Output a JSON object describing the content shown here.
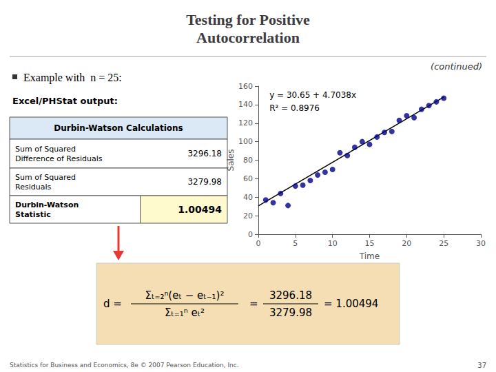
{
  "chart_data": {
    "type": "scatter",
    "title": "Testing for Positive\nAutocorrelation",
    "subtitle": "(continued)",
    "xlabel": "Time",
    "ylabel": "Sales",
    "xlim": [
      0,
      30
    ],
    "xticks": [
      0,
      5,
      10,
      15,
      20,
      25,
      30
    ],
    "ylim": [
      0,
      160
    ],
    "yticks": [
      0,
      20,
      40,
      60,
      80,
      100,
      120,
      140,
      160
    ],
    "grid": false,
    "series": [
      {
        "type": "scatter",
        "color": "#00008B",
        "x": [
          1,
          2,
          3,
          4,
          5,
          6,
          7,
          8,
          9,
          10,
          11,
          12,
          13,
          14,
          15,
          16,
          17,
          18,
          19,
          20,
          21,
          22,
          23,
          24,
          25
        ],
        "values": [
          37,
          34,
          44,
          31,
          52,
          53,
          58,
          64,
          67,
          70,
          88,
          85,
          94,
          100,
          97,
          105,
          110,
          111,
          123,
          128,
          126,
          135,
          139,
          143,
          147
        ]
      },
      {
        "type": "line",
        "color": "#000000",
        "x": [
          0,
          25
        ],
        "values": [
          30.65,
          148.245
        ]
      }
    ],
    "annotations": [
      "y = 30.65 + 4.7038x",
      "R² = 0.8976"
    ],
    "bullet_text": "Example with  n = 25:",
    "excel_label": "Excel/PHStat output:",
    "table": {
      "header": "Durbin-Watson Calculations",
      "rows": [
        [
          "Sum of Squared\nDifference of Residuals",
          "3296.18"
        ],
        [
          "Sum of Squared\nResiduals",
          "3279.98"
        ],
        [
          "Durbin-Watson\nStatistic",
          "1.00494"
        ]
      ]
    },
    "formula": [
      {
        "left": "d =",
        "numerator": "Σₜ₌₂ⁿ(eₜ − eₜ₋₁)²",
        "denominator": "Σₜ₌₁ⁿ eₜ²"
      },
      {
        "left": "=",
        "numerator": "3296.18",
        "denominator": "3279.98",
        "right": "= 1.00494"
      }
    ],
    "footer": "Statistics for Business and Economics, 8e © 2007 Pearson Education, Inc.",
    "page": "37"
  }
}
